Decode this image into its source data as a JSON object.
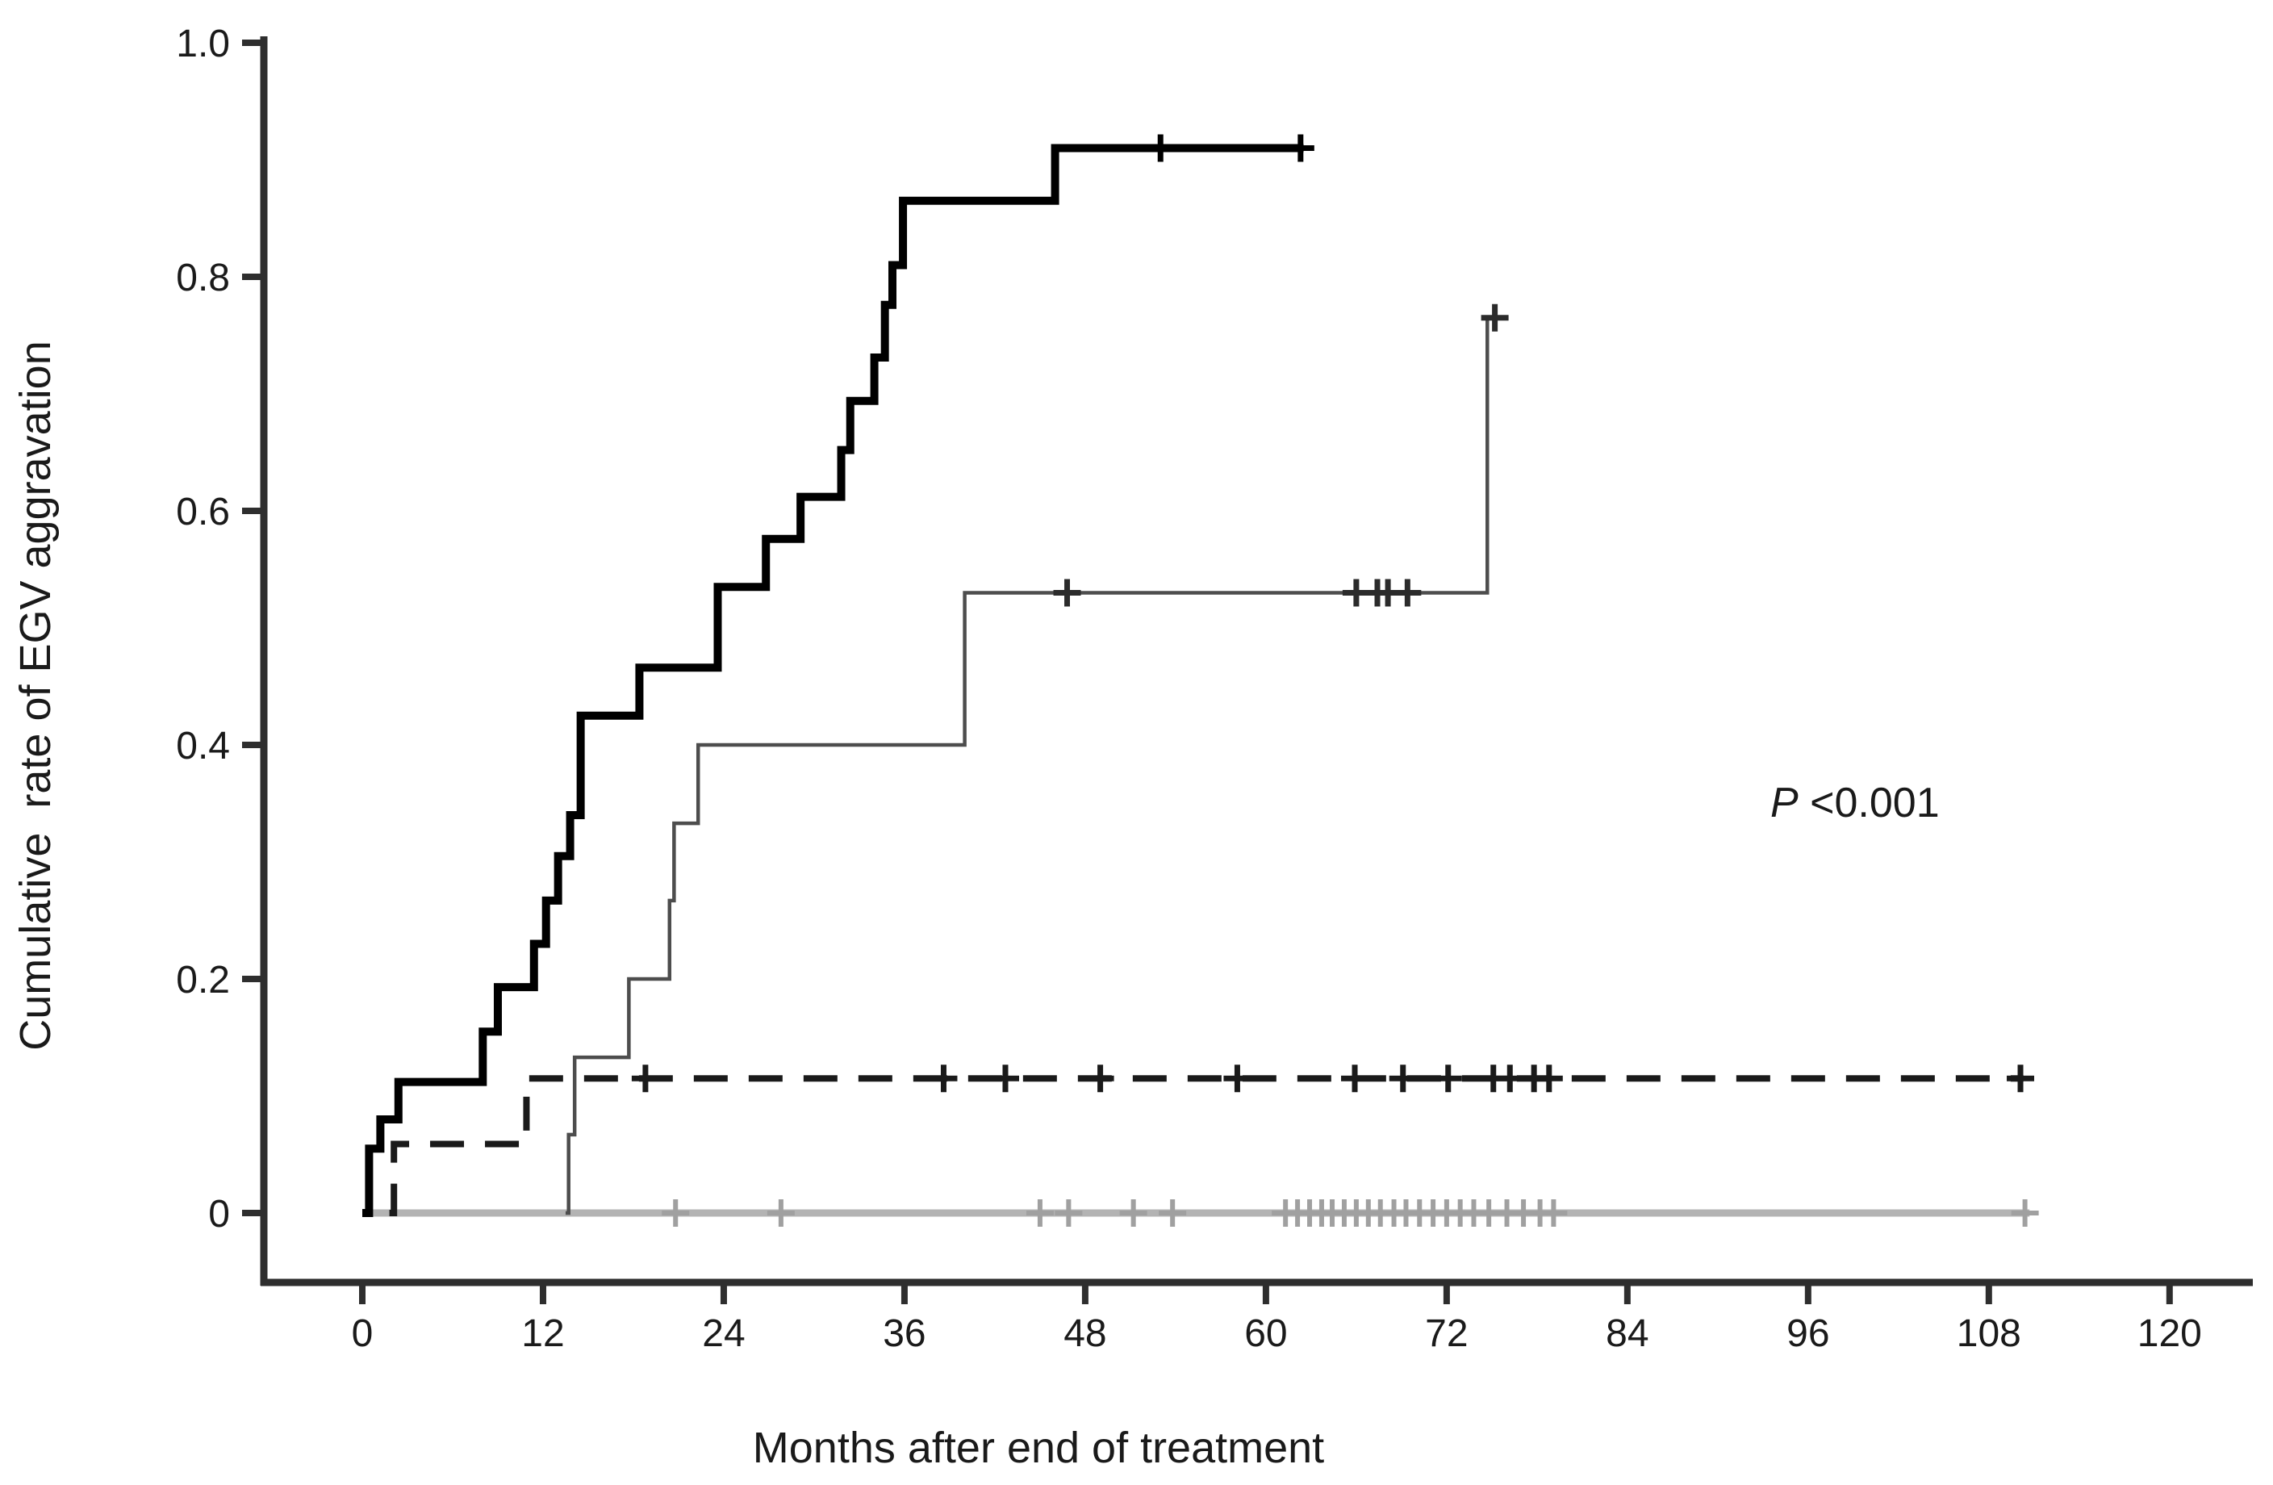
{
  "chart_data": {
    "type": "line",
    "subtype": "kaplan-meier-cumulative-incidence-steps",
    "title": "",
    "xlabel": "Months after end of treatment",
    "ylabel": "Cumulative  rate of EGV aggravation",
    "annotation": {
      "p_italic": "P",
      "p_rest": " <0.001"
    },
    "xlim": [
      0,
      120
    ],
    "ylim": [
      0,
      1.0
    ],
    "grid": false,
    "legend": "none",
    "x_ticks": [
      0,
      12,
      24,
      36,
      48,
      60,
      72,
      84,
      96,
      108,
      120
    ],
    "y_ticks": [
      [
        "1.0",
        1.0
      ],
      [
        "0.8",
        0.8
      ],
      [
        "0.6",
        0.6
      ],
      [
        "0.4",
        0.4
      ],
      [
        "0.2",
        0.2
      ],
      [
        "0",
        0
      ]
    ],
    "axis_color": "#2e2e2e",
    "series": [
      {
        "name": "group-d-zero-flat",
        "style": "solid-zero",
        "color": "#b3b3b3",
        "censor_color": "#a0a0a0",
        "steps": [
          [
            0.5,
            0
          ]
        ],
        "end_t": 110.7,
        "censors": [
          [
            20.8,
            0
          ],
          [
            27.8,
            0
          ],
          [
            45.0,
            0
          ],
          [
            46.9,
            0
          ],
          [
            51.2,
            0
          ],
          [
            53.8,
            0
          ],
          [
            61.3,
            0
          ],
          [
            62.1,
            0
          ],
          [
            62.9,
            0
          ],
          [
            63.7,
            0
          ],
          [
            64.4,
            0
          ],
          [
            65.2,
            0
          ],
          [
            66.0,
            0
          ],
          [
            66.8,
            0
          ],
          [
            67.6,
            0
          ],
          [
            68.5,
            0
          ],
          [
            69.3,
            0
          ],
          [
            70.2,
            0
          ],
          [
            71.1,
            0
          ],
          [
            72.0,
            0
          ],
          [
            72.9,
            0
          ],
          [
            73.8,
            0
          ],
          [
            74.8,
            0
          ],
          [
            76.0,
            0
          ],
          [
            77.1,
            0
          ],
          [
            78.2,
            0
          ],
          [
            79.1,
            0
          ],
          [
            110.4,
            0
          ]
        ]
      },
      {
        "name": "group-c-dashed",
        "style": "dashed",
        "color": "#1a1a1a",
        "censor_color": "#1a1a1a",
        "steps": [
          [
            1.8,
            0
          ],
          [
            2.1,
            0.059
          ],
          [
            10.9,
            0.115
          ]
        ],
        "end_t": 110.3,
        "censors": [
          [
            18.8,
            0.115
          ],
          [
            38.6,
            0.115
          ],
          [
            42.7,
            0.115
          ],
          [
            49.0,
            0.115
          ],
          [
            58.1,
            0.115
          ],
          [
            65.9,
            0.115
          ],
          [
            69.1,
            0.115
          ],
          [
            72.1,
            0.115
          ],
          [
            75.1,
            0.115
          ],
          [
            76.2,
            0.115
          ],
          [
            77.8,
            0.115
          ],
          [
            78.8,
            0.115
          ],
          [
            110.1,
            0.115
          ]
        ]
      },
      {
        "name": "group-b-thin",
        "style": "solid-thin",
        "color": "#4d4d4d",
        "censor_color": "#2b2b2b",
        "steps": [
          [
            13.5,
            0
          ],
          [
            13.7,
            0.067
          ],
          [
            14.1,
            0.133
          ],
          [
            17.7,
            0.2
          ],
          [
            20.4,
            0.267
          ],
          [
            20.7,
            0.333
          ],
          [
            22.3,
            0.4
          ],
          [
            40.0,
            0.53
          ],
          [
            74.7,
            0.765
          ]
        ],
        "end_t": 75.7,
        "censors": [
          [
            46.8,
            0.53
          ],
          [
            66.0,
            0.53
          ],
          [
            67.4,
            0.53
          ],
          [
            68.1,
            0.53
          ],
          [
            69.4,
            0.53
          ],
          [
            75.2,
            0.765
          ]
        ]
      },
      {
        "name": "group-a-thick",
        "style": "solid-thick",
        "color": "#000000",
        "censor_color": "#000000",
        "steps": [
          [
            0,
            0
          ],
          [
            0.45,
            0.055
          ],
          [
            1.2,
            0.08
          ],
          [
            2.4,
            0.112
          ],
          [
            8.0,
            0.155
          ],
          [
            9.0,
            0.193
          ],
          [
            11.4,
            0.23
          ],
          [
            12.2,
            0.267
          ],
          [
            13.0,
            0.305
          ],
          [
            13.8,
            0.34
          ],
          [
            14.5,
            0.425
          ],
          [
            18.4,
            0.466
          ],
          [
            23.6,
            0.535
          ],
          [
            26.8,
            0.576
          ],
          [
            29.1,
            0.612
          ],
          [
            31.8,
            0.652
          ],
          [
            32.4,
            0.694
          ],
          [
            34.0,
            0.731
          ],
          [
            34.7,
            0.776
          ],
          [
            35.2,
            0.81
          ],
          [
            35.9,
            0.865
          ],
          [
            46.0,
            0.91
          ]
        ],
        "end_t": 62.5,
        "censors": [
          [
            53.0,
            0.91
          ],
          [
            62.3,
            0.91
          ]
        ]
      }
    ]
  }
}
